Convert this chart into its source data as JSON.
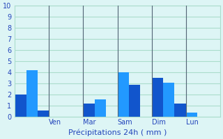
{
  "bar_values": [
    2,
    2,
    4.2,
    4.2,
    0.6,
    0.6,
    0,
    0,
    0,
    0,
    0,
    0,
    1.2,
    1.2,
    1.6,
    1.6,
    0,
    0,
    4.0,
    4.0,
    2.9,
    2.9,
    0,
    0,
    3.5,
    3.5,
    3.1,
    3.1,
    1.2,
    1.2,
    0.4,
    0.4,
    0,
    0,
    0,
    0
  ],
  "bar_color": "#1a6fdb",
  "bar_color2": "#2196f3",
  "background_color": "#ddf5f5",
  "grid_color": "#aaddcc",
  "axis_line_color": "#808080",
  "day_lines_x": [
    6,
    12,
    18,
    24,
    30
  ],
  "day_labels": [
    "Ven",
    "Mar",
    "Sam",
    "Dim",
    "Lun"
  ],
  "title": "Précipitations 24h ( mm )",
  "ylim": [
    0,
    10
  ],
  "yticks": [
    0,
    1,
    2,
    3,
    4,
    5,
    6,
    7,
    8,
    9,
    10
  ],
  "num_bars": 36
}
